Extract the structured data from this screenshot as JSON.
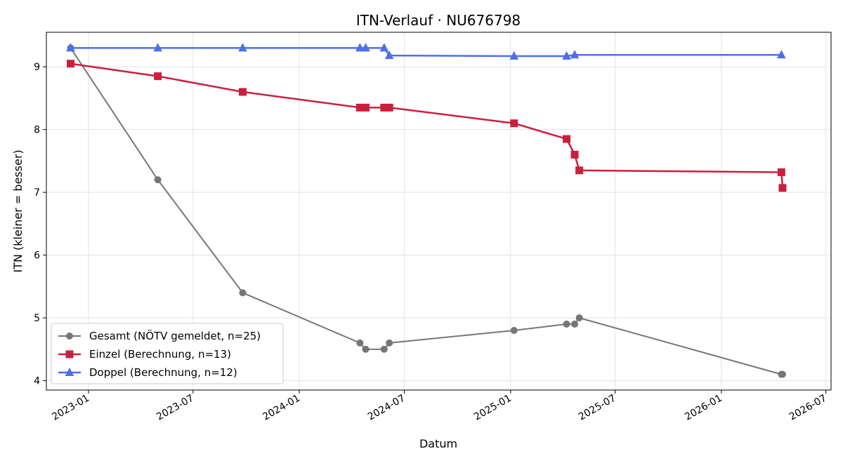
{
  "chart_data": {
    "type": "line",
    "title": "ITN-Verlauf · NU676798",
    "xlabel": "Datum",
    "ylabel": "ITN  (kleiner = besser)",
    "x_axis_type": "date",
    "xlim": [
      "2022-10-20",
      "2026-07-10"
    ],
    "ylim": [
      3.85,
      9.55
    ],
    "x_ticks": [
      {
        "date": "2023-01-01",
        "label": "2023-01"
      },
      {
        "date": "2023-07-01",
        "label": "2023-07"
      },
      {
        "date": "2024-01-01",
        "label": "2024-01"
      },
      {
        "date": "2024-07-01",
        "label": "2024-07"
      },
      {
        "date": "2025-01-01",
        "label": "2025-01"
      },
      {
        "date": "2025-07-01",
        "label": "2025-07"
      },
      {
        "date": "2026-01-01",
        "label": "2026-01"
      },
      {
        "date": "2026-07-01",
        "label": "2026-07"
      }
    ],
    "y_ticks": [
      4,
      5,
      6,
      7,
      8,
      9
    ],
    "grid": true,
    "legend_position": "lower-left",
    "series": [
      {
        "name": "Gesamt (NÖTV gemeldet, n=25)",
        "color": "#555555",
        "marker": "circle",
        "points": [
          {
            "x": "2022-12-01",
            "y": 9.3
          },
          {
            "x": "2023-05-01",
            "y": 7.2
          },
          {
            "x": "2023-09-25",
            "y": 5.4
          },
          {
            "x": "2024-04-15",
            "y": 4.6
          },
          {
            "x": "2024-04-25",
            "y": 4.5
          },
          {
            "x": "2024-05-27",
            "y": 4.5
          },
          {
            "x": "2024-06-05",
            "y": 4.6
          },
          {
            "x": "2025-01-07",
            "y": 4.8
          },
          {
            "x": "2025-04-08",
            "y": 4.9
          },
          {
            "x": "2025-04-22",
            "y": 4.9
          },
          {
            "x": "2025-04-30",
            "y": 5.0
          },
          {
            "x": "2026-04-15",
            "y": 4.1
          },
          {
            "x": "2026-04-17",
            "y": 4.1
          }
        ]
      },
      {
        "name": "Einzel (Berechnung, n=13)",
        "color": "#c8203e",
        "marker": "square",
        "points": [
          {
            "x": "2022-12-01",
            "y": 9.05
          },
          {
            "x": "2023-05-01",
            "y": 8.85
          },
          {
            "x": "2023-09-25",
            "y": 8.6
          },
          {
            "x": "2024-04-15",
            "y": 8.35
          },
          {
            "x": "2024-04-25",
            "y": 8.35
          },
          {
            "x": "2024-05-27",
            "y": 8.35
          },
          {
            "x": "2024-06-05",
            "y": 8.35
          },
          {
            "x": "2025-01-07",
            "y": 8.1
          },
          {
            "x": "2025-04-08",
            "y": 7.85
          },
          {
            "x": "2025-04-22",
            "y": 7.6
          },
          {
            "x": "2025-04-30",
            "y": 7.35
          },
          {
            "x": "2026-04-15",
            "y": 7.32
          },
          {
            "x": "2026-04-17",
            "y": 7.07
          }
        ]
      },
      {
        "name": "Doppel (Berechnung, n=12)",
        "color": "#4f6fe8",
        "marker": "triangle",
        "points": [
          {
            "x": "2022-12-01",
            "y": 9.3
          },
          {
            "x": "2023-05-01",
            "y": 9.3
          },
          {
            "x": "2023-09-25",
            "y": 9.3
          },
          {
            "x": "2024-04-15",
            "y": 9.3
          },
          {
            "x": "2024-04-25",
            "y": 9.3
          },
          {
            "x": "2024-05-27",
            "y": 9.3
          },
          {
            "x": "2024-06-05",
            "y": 9.18
          },
          {
            "x": "2025-01-07",
            "y": 9.17
          },
          {
            "x": "2025-04-08",
            "y": 9.17
          },
          {
            "x": "2025-04-22",
            "y": 9.19
          },
          {
            "x": "2026-04-15",
            "y": 9.19
          }
        ]
      }
    ]
  }
}
